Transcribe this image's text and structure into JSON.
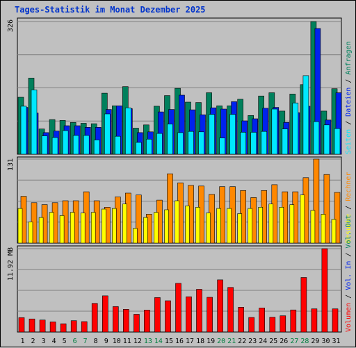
{
  "title": "Tages-Statistik im Monat Dezember 2025",
  "colors": {
    "anfragen": "#00805c",
    "dateien": "#0022ee",
    "seiten": "#00e8ff",
    "besuche": "#ffff00",
    "rechner": "#ff8800",
    "volumen": "#ff0000",
    "weekend": "#008040",
    "sep": "#000000"
  },
  "chart_data": [
    {
      "type": "bar",
      "title": "Tages-Statistik im Monat Dezember 2025",
      "categories": [
        "1",
        "2",
        "3",
        "4",
        "5",
        "6",
        "7",
        "8",
        "9",
        "10",
        "11",
        "12",
        "13",
        "14",
        "15",
        "16",
        "17",
        "18",
        "19",
        "20",
        "21",
        "22",
        "23",
        "24",
        "25",
        "26",
        "27",
        "28",
        "29",
        "30",
        "31"
      ],
      "weekend_days": [
        "6",
        "7",
        "13",
        "14",
        "20",
        "21",
        "27",
        "28"
      ],
      "ymax_label": "326",
      "ylim": [
        0,
        326
      ],
      "series": [
        {
          "name": "Anfragen",
          "values": [
            140,
            187,
            62,
            85,
            83,
            78,
            76,
            75,
            150,
            119,
            166,
            64,
            72,
            118,
            144,
            162,
            128,
            127,
            151,
            119,
            119,
            135,
            95,
            143,
            151,
            106,
            148,
            171,
            326,
            106,
            161
          ]
        },
        {
          "name": "Dateien",
          "values": [
            115,
            101,
            53,
            57,
            70,
            70,
            66,
            66,
            110,
            119,
            112,
            53,
            55,
            104,
            110,
            145,
            109,
            97,
            114,
            111,
            129,
            82,
            87,
            113,
            115,
            78,
            102,
            118,
            309,
            84,
            151
          ]
        },
        {
          "name": "Seiten",
          "values": [
            118,
            158,
            45,
            41,
            58,
            46,
            46,
            35,
            99,
            44,
            114,
            29,
            37,
            51,
            74,
            53,
            56,
            55,
            98,
            40,
            98,
            54,
            54,
            56,
            111,
            62,
            126,
            193,
            80,
            72,
            63
          ]
        }
      ],
      "side_labels": [
        {
          "text": "Seiten",
          "color": "#00e8ff"
        },
        {
          "text": " / ",
          "color": "#000000"
        },
        {
          "text": "Dateien",
          "color": "#0022ee"
        },
        {
          "text": " / ",
          "color": "#000000"
        },
        {
          "text": "Anfragen",
          "color": "#00805c"
        }
      ]
    },
    {
      "type": "bar",
      "categories": [
        "1",
        "2",
        "3",
        "4",
        "5",
        "6",
        "7",
        "8",
        "9",
        "10",
        "11",
        "12",
        "13",
        "14",
        "15",
        "16",
        "17",
        "18",
        "19",
        "20",
        "21",
        "22",
        "23",
        "24",
        "25",
        "26",
        "27",
        "28",
        "29",
        "30",
        "31"
      ],
      "ymax_label": "131",
      "ylim": [
        0,
        131
      ],
      "series": [
        {
          "name": "Besuche",
          "values": [
            54,
            33,
            40,
            48,
            43,
            48,
            47,
            48,
            53,
            54,
            61,
            23,
            40,
            48,
            52,
            66,
            58,
            56,
            47,
            54,
            54,
            46,
            54,
            56,
            61,
            56,
            60,
            75,
            51,
            45,
            37
          ]
        },
        {
          "name": "Rechner",
          "values": [
            73,
            63,
            60,
            63,
            66,
            66,
            80,
            66,
            56,
            72,
            78,
            75,
            45,
            67,
            108,
            94,
            90,
            89,
            76,
            88,
            88,
            82,
            71,
            82,
            91,
            80,
            80,
            102,
            131,
            107,
            79
          ]
        }
      ],
      "side_labels": [
        {
          "text": "Besuche",
          "color": "#ffff00"
        },
        {
          "text": " / ",
          "color": "#000000"
        },
        {
          "text": "Rechner",
          "color": "#ff8800"
        }
      ]
    },
    {
      "type": "bar",
      "categories": [
        "1",
        "2",
        "3",
        "4",
        "5",
        "6",
        "7",
        "8",
        "9",
        "10",
        "11",
        "12",
        "13",
        "14",
        "15",
        "16",
        "17",
        "18",
        "19",
        "20",
        "21",
        "22",
        "23",
        "24",
        "25",
        "26",
        "27",
        "28",
        "29",
        "30",
        "31"
      ],
      "ymax_label": "11.92 MB",
      "unit": "MB",
      "ylim": [
        0,
        11.92
      ],
      "series": [
        {
          "name": "Volumen",
          "values": [
            2.06,
            1.87,
            1.72,
            1.45,
            1.18,
            1.62,
            1.49,
            4.09,
            5.18,
            3.64,
            3.25,
            2.53,
            3.15,
            4.93,
            4.47,
            6.96,
            5.05,
            6.11,
            4.97,
            7.46,
            6.38,
            3.54,
            2.09,
            3.45,
            2.12,
            2.32,
            3.16,
            7.8,
            3.32,
            11.92,
            3.32
          ]
        }
      ],
      "side_labels": [
        {
          "text": "Volumen",
          "color": "#ff0000"
        },
        {
          "text": " / ",
          "color": "#000000"
        },
        {
          "text": "Vol. In",
          "color": "#0022ee"
        },
        {
          "text": " / ",
          "color": "#000000"
        },
        {
          "text": "Vol. Out",
          "color": "#00805c"
        }
      ]
    }
  ]
}
